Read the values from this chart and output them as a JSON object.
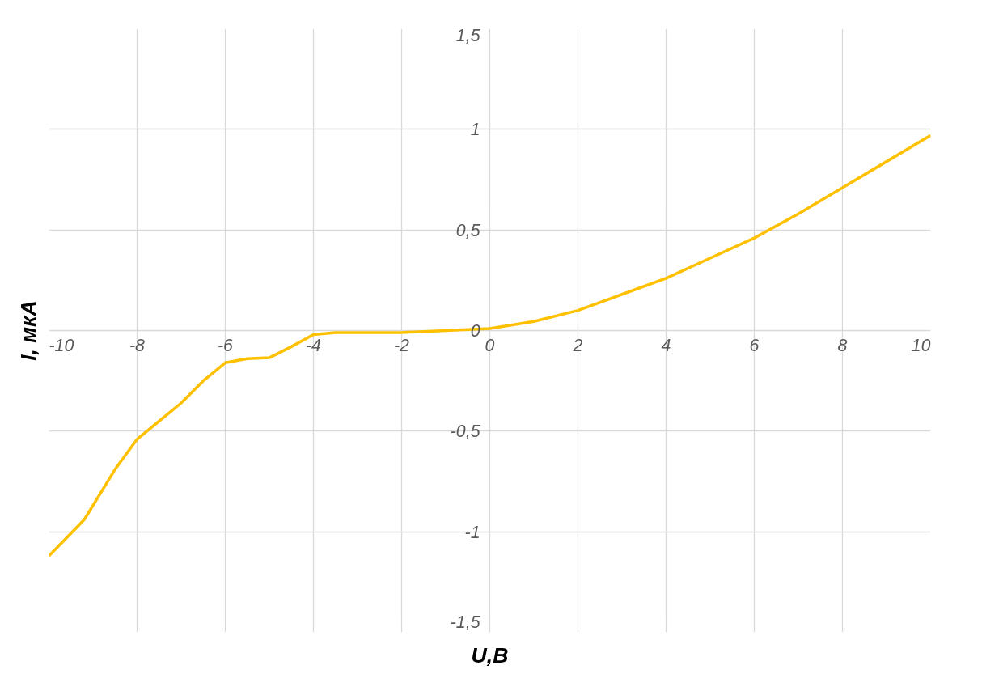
{
  "chart_data": {
    "type": "line",
    "xlabel": "U,В",
    "ylabel": "I, мкА",
    "x": [
      -10,
      -9.2,
      -8.5,
      -8,
      -7.5,
      -7,
      -6.5,
      -6,
      -5.5,
      -5,
      -4.5,
      -4,
      -3.5,
      -2,
      -1,
      0,
      1,
      2,
      3,
      4,
      5,
      6,
      7,
      8,
      9,
      10
    ],
    "series": [
      {
        "color": "#ffc000",
        "values": [
          -1.12,
          -0.94,
          -0.69,
          -0.54,
          -0.45,
          -0.36,
          -0.25,
          -0.16,
          -0.14,
          -0.135,
          -0.08,
          -0.02,
          -0.01,
          -0.01,
          0,
          0.01,
          0.045,
          0.1,
          0.18,
          0.26,
          0.36,
          0.46,
          0.58,
          0.71,
          0.84,
          0.97
        ]
      }
    ],
    "xlim": [
      -10,
      10
    ],
    "ylim": [
      -1.5,
      1.5
    ],
    "xticks": [
      -10,
      -8,
      -6,
      -4,
      -2,
      0,
      2,
      4,
      6,
      8,
      10
    ],
    "yticks": [
      {
        "value": -1.5,
        "label": "-1,5"
      },
      -1,
      {
        "value": -0.5,
        "label": "-0,5"
      },
      0,
      {
        "value": 0.5,
        "label": "0,5"
      },
      1,
      {
        "value": 1.5,
        "label": "1,5"
      }
    ],
    "grid": true,
    "marker": "none",
    "line_style": "solid"
  }
}
